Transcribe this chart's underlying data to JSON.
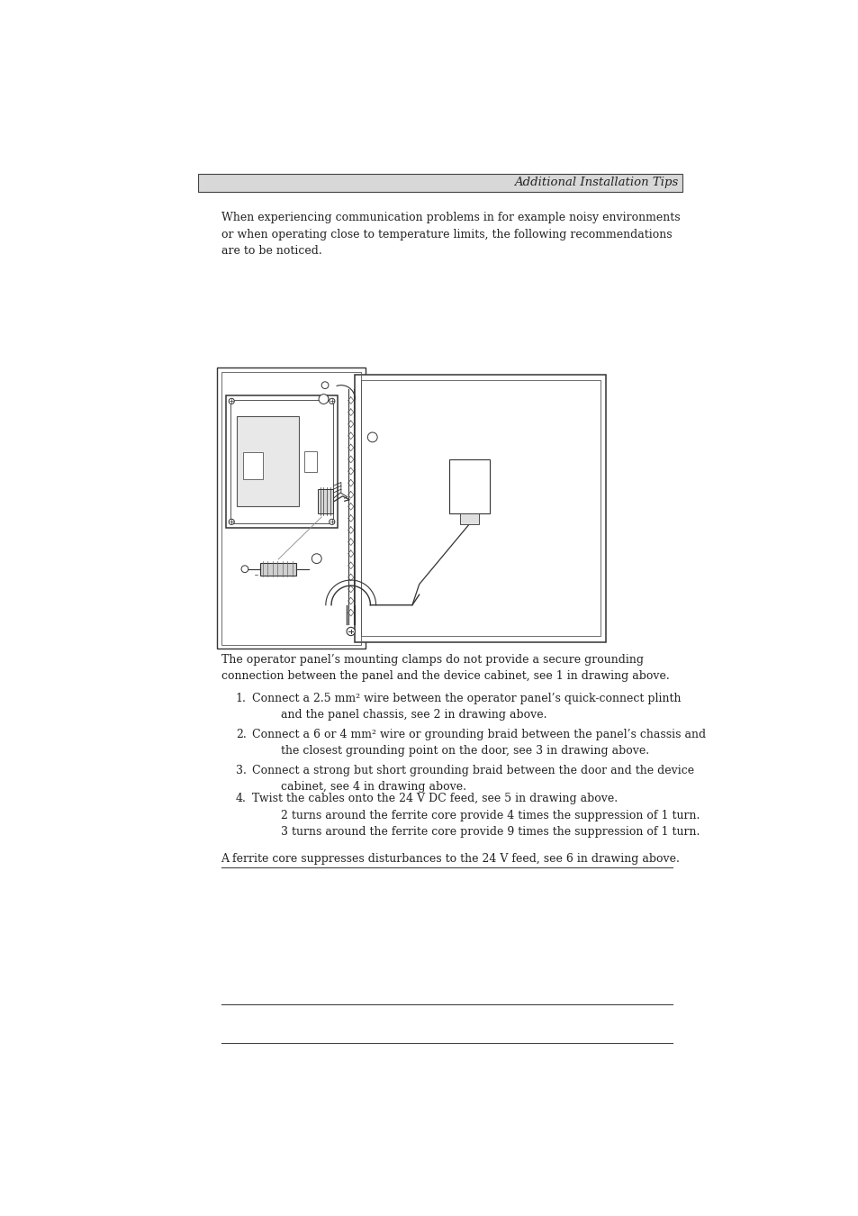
{
  "header_text": "Additional Installation Tips",
  "header_bg": "#d8d8d8",
  "header_border": "#444444",
  "page_bg": "#ffffff",
  "intro_text": "When experiencing communication problems in for example noisy environments\nor when operating close to temperature limits, the following recommendations\nare to be noticed.",
  "body_text": "The operator panel’s mounting clamps do not provide a secure grounding\nconnection between the panel and the device cabinet, see 1 in drawing above.",
  "list_items": [
    {
      "num": "1.",
      "text": "Connect a 2.5 mm² wire between the operator panel’s quick-connect plinth\nand the panel chassis, see 2 in drawing above."
    },
    {
      "num": "2.",
      "text": "Connect a 6 or 4 mm² wire or grounding braid between the panel’s chassis and\nthe closest grounding point on the door, see 3 in drawing above."
    },
    {
      "num": "3.",
      "text": "Connect a strong but short grounding braid between the door and the device\ncabinet, see 4 in drawing above."
    },
    {
      "num": "4.",
      "text": "Twist the cables onto the 24 V DC feed, see 5 in drawing above.\n     2 turns around the ferrite core provide 4 times the suppression of 1 turn.\n     3 turns around the ferrite core provide 9 times the suppression of 1 turn."
    }
  ],
  "footer_text": "A ferrite core suppresses disturbances to the 24 V feed, see 6 in drawing above.",
  "text_color": "#222222",
  "font_family": "serif",
  "font_size_header": 9.5,
  "font_size_body": 9.0
}
